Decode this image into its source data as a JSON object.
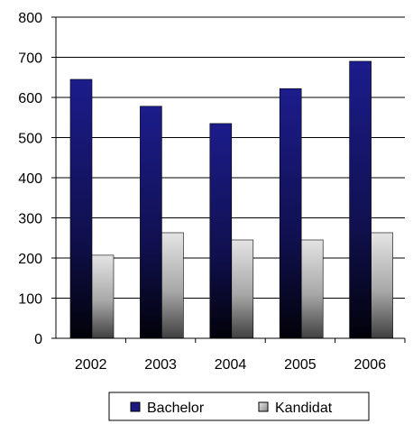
{
  "chart_data": {
    "type": "bar",
    "categories": [
      "2002",
      "2003",
      "2004",
      "2005",
      "2006"
    ],
    "series": [
      {
        "name": "Bachelor",
        "values": [
          645,
          578,
          535,
          622,
          690
        ],
        "color": "#1a1a80"
      },
      {
        "name": "Kandidat",
        "values": [
          207,
          263,
          245,
          245,
          263
        ],
        "color": "#c0c0c0"
      }
    ],
    "ylim": [
      0,
      800
    ],
    "yticks": [
      "0",
      "100",
      "200",
      "300",
      "400",
      "500",
      "600",
      "700",
      "800"
    ],
    "grid": true,
    "legend_position": "bottom",
    "title": "",
    "xlabel": "",
    "ylabel": ""
  }
}
